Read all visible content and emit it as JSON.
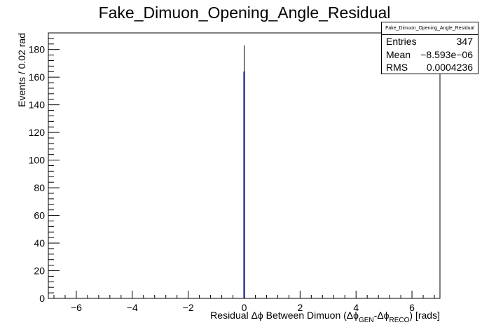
{
  "chart_data": {
    "type": "bar",
    "title": "Fake_Dimuon_Opening_Angle_Residual",
    "xlabel": "Residual Δϕ Between Dimuon (Δϕ",
    "xlabel_sub1": "GEN",
    "xlabel_mid": "-Δϕ",
    "xlabel_sub2": "RECO",
    "xlabel_end": ") [rads]",
    "ylabel": "Events / 0.02 rad",
    "xlim": [
      -7,
      7
    ],
    "ylim": [
      0,
      192
    ],
    "x_ticks": [
      -6,
      -4,
      -2,
      0,
      2,
      4,
      6
    ],
    "y_ticks": [
      0,
      20,
      40,
      60,
      80,
      100,
      120,
      140,
      160,
      180
    ],
    "bins": [
      {
        "x": 0.0,
        "value": 164,
        "color": "#00007f"
      },
      {
        "x": 0.0,
        "value": 183,
        "color": "#000000"
      }
    ]
  },
  "stats": {
    "title": "Fake_Dimuon_Opening_Angle_Residual",
    "rows": [
      {
        "label": "Entries",
        "value": "347"
      },
      {
        "label": "Mean",
        "value": "−8.593e−06"
      },
      {
        "label": "RMS",
        "value": "0.0004236"
      }
    ]
  }
}
